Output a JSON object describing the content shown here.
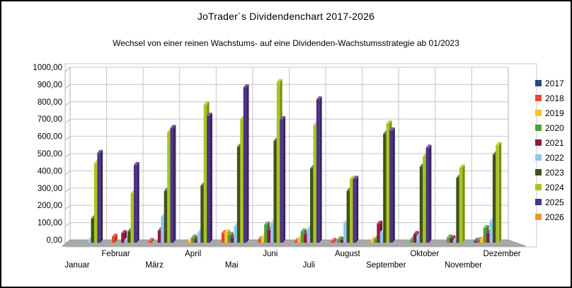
{
  "title": "JoTrader´s Dividendenchart 2017-2026",
  "subtitle": "Wechsel von einer reinen Wachstums- auf eine Dividenden-Wachstumsstrategie ab 01/2023",
  "chart_data": {
    "type": "bar",
    "style": "3d-clustered-column",
    "grid": true,
    "legend_position": "right",
    "ylim": [
      0,
      1000
    ],
    "ytick_step": 100,
    "yticks": [
      "1000,00",
      "900,00",
      "800,00",
      "700,00",
      "600,00",
      "500,00",
      "400,00",
      "300,00",
      "200,00",
      "100,00",
      "0,00"
    ],
    "categories": [
      "Januar",
      "Februar",
      "März",
      "April",
      "Mai",
      "Juni",
      "Juli",
      "August",
      "September",
      "Oktober",
      "November",
      "Dezember"
    ],
    "series": [
      {
        "name": "2017",
        "color": "#1F4E79",
        "values": [
          0,
          0,
          0,
          0,
          0,
          0,
          0,
          0,
          0,
          0,
          0,
          10
        ]
      },
      {
        "name": "2018",
        "color": "#E5492A",
        "values": [
          0,
          35,
          10,
          0,
          55,
          20,
          10,
          10,
          0,
          0,
          0,
          15
        ]
      },
      {
        "name": "2019",
        "color": "#FFC327",
        "values": [
          0,
          0,
          0,
          10,
          60,
          30,
          25,
          0,
          15,
          0,
          0,
          20
        ]
      },
      {
        "name": "2020",
        "color": "#4FA035",
        "values": [
          0,
          0,
          0,
          30,
          45,
          105,
          65,
          20,
          20,
          20,
          30,
          85
        ]
      },
      {
        "name": "2021",
        "color": "#941740",
        "values": [
          0,
          55,
          70,
          20,
          30,
          75,
          50,
          15,
          110,
          50,
          25,
          55
        ]
      },
      {
        "name": "2022",
        "color": "#8DC8F2",
        "values": [
          15,
          15,
          150,
          60,
          95,
          115,
          80,
          115,
          60,
          40,
          15,
          125
        ]
      },
      {
        "name": "2023",
        "color": "#43501A",
        "values": [
          140,
          65,
          300,
          330,
          555,
          590,
          430,
          300,
          630,
          440,
          375,
          510
        ]
      },
      {
        "name": "2024",
        "color": "#A5C71F",
        "values": [
          460,
          285,
          640,
          800,
          715,
          930,
          680,
          370,
          690,
          500,
          435,
          565
        ]
      },
      {
        "name": "2025",
        "color": "#4E3286",
        "values": [
          520,
          450,
          665,
          735,
          900,
          715,
          830,
          370,
          650,
          550,
          0,
          0
        ]
      },
      {
        "name": "2026",
        "color": "#F79428",
        "values": [
          0,
          0,
          0,
          0,
          0,
          0,
          0,
          0,
          0,
          0,
          0,
          0
        ]
      }
    ]
  }
}
